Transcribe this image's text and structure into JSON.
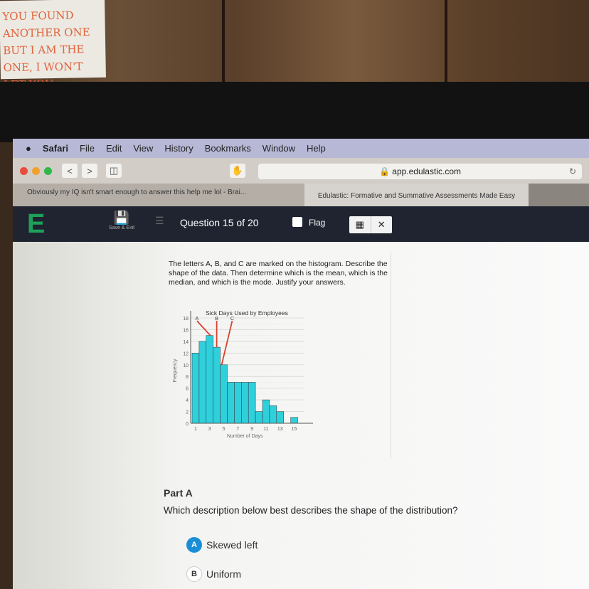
{
  "sticky_note": {
    "text": "YOU FOUND ANOTHER ONE BUT I AM THE ONE, I WON'T LET YOU"
  },
  "menubar": {
    "apple_icon": "apple-icon",
    "items": [
      "Safari",
      "File",
      "Edit",
      "View",
      "History",
      "Bookmarks",
      "Window",
      "Help"
    ]
  },
  "toolbar": {
    "url": "app.edulastic.com",
    "back": "<",
    "forward": ">"
  },
  "tabs": [
    "Obviously my IQ isn't smart enough to answer this help me lol - Brai...",
    "Edulastic: Formative and Summative Assessments Made Easy"
  ],
  "app": {
    "logo": "E",
    "save_exit": "Save & Exit",
    "question_counter": "Question 15 of 20",
    "flag_label": "Flag",
    "close": "✕",
    "calculator_icon": "calculator-icon"
  },
  "question": {
    "text": "The letters A, B, and C are marked on the histogram. Describe the shape of the data. Then determine which is the mean, which is the median, and which is the mode. Justify your answers."
  },
  "chart_data": {
    "type": "bar",
    "title": "Sick Days Used by Employees",
    "xlabel": "Number of Days",
    "ylabel": "Frequency",
    "categories": [
      1,
      2,
      3,
      4,
      5,
      6,
      7,
      8,
      9,
      10,
      11,
      12,
      13,
      14,
      15
    ],
    "values": [
      12,
      14,
      15,
      13,
      10,
      7,
      7,
      7,
      7,
      2,
      4,
      3,
      2,
      0,
      1
    ],
    "xticks": [
      "1",
      "3",
      "5",
      "7",
      "9",
      "11",
      "13",
      "15"
    ],
    "yticks": [
      "0",
      "2",
      "4",
      "6",
      "8",
      "10",
      "12",
      "14",
      "16",
      "18"
    ],
    "ylim": [
      0,
      18
    ],
    "grid": true,
    "bar_color": "#2fd0dc",
    "markers": [
      {
        "label": "A",
        "points_to": 3
      },
      {
        "label": "B",
        "points_to": 4
      },
      {
        "label": "C",
        "points_to": 5
      }
    ],
    "marker_color": "#d9412f"
  },
  "part_a": {
    "heading": "Part A",
    "prompt": "Which description below best describes the shape of the distribution?",
    "options": [
      {
        "letter": "A",
        "text": "Skewed left"
      },
      {
        "letter": "B",
        "text": "Uniform"
      }
    ]
  }
}
